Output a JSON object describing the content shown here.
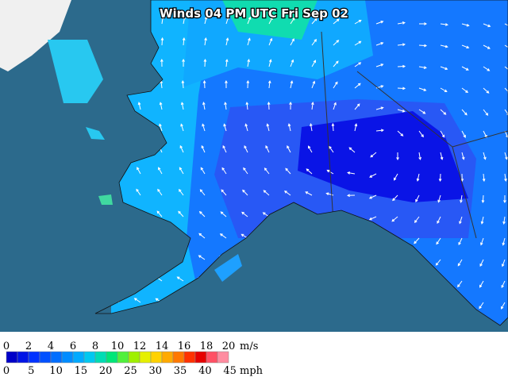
{
  "title": "Winds 04 PM UTC Fri Sep 02",
  "legend": {
    "colors": [
      "#0000c8",
      "#0014e6",
      "#0032ff",
      "#0050ff",
      "#006eff",
      "#008cff",
      "#00aaff",
      "#00c8f0",
      "#00dcb4",
      "#00e678",
      "#50f03c",
      "#a0f000",
      "#e6f000",
      "#ffd200",
      "#ffaa00",
      "#ff7800",
      "#ff3200",
      "#e60000",
      "#ff5064",
      "#ff8ca0"
    ],
    "ms_ticks": [
      0,
      2,
      4,
      6,
      8,
      10,
      12,
      14,
      16,
      18,
      20
    ],
    "ms_unit": "m/s",
    "mph_ticks": [
      0,
      5,
      10,
      15,
      20,
      25,
      30,
      35,
      40,
      45
    ],
    "mph_unit": "mph"
  }
}
